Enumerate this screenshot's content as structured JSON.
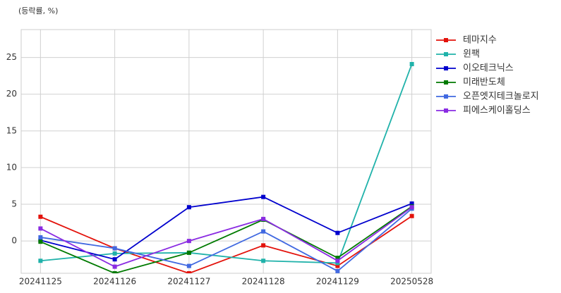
{
  "chart_data": {
    "type": "line",
    "annotation": "(등락률, %)",
    "categories": [
      "20241125",
      "20241126",
      "20241127",
      "20241128",
      "20241129",
      "20250528"
    ],
    "series": [
      {
        "name": "테마지수",
        "color": "#e3120b",
        "values": [
          3.3,
          -1.0,
          -4.4,
          -0.6,
          -3.4,
          3.4
        ]
      },
      {
        "name": "윈팩",
        "color": "#20b2aa",
        "values": [
          -2.7,
          -1.7,
          -1.6,
          -2.7,
          -3.0,
          24.1
        ]
      },
      {
        "name": "이오테크닉스",
        "color": "#0000cd",
        "values": [
          0.1,
          -2.5,
          4.6,
          6.0,
          1.1,
          5.1
        ]
      },
      {
        "name": "미래반도체",
        "color": "#007a00",
        "values": [
          -0.1,
          -4.4,
          -1.6,
          2.9,
          -2.3,
          4.7
        ]
      },
      {
        "name": "오픈엣지테크놀로지",
        "color": "#4169e1",
        "values": [
          0.5,
          -1.0,
          -3.4,
          1.3,
          -4.1,
          4.4
        ]
      },
      {
        "name": "피에스케이홀딩스",
        "color": "#8a2be2",
        "values": [
          1.7,
          -3.5,
          0.0,
          3.0,
          -2.7,
          4.6
        ]
      }
    ],
    "ylim": [
      -4.4,
      28.8
    ],
    "yticks": [
      0,
      5,
      10,
      15,
      20,
      25
    ],
    "grid": true,
    "legend": "outside-right"
  }
}
